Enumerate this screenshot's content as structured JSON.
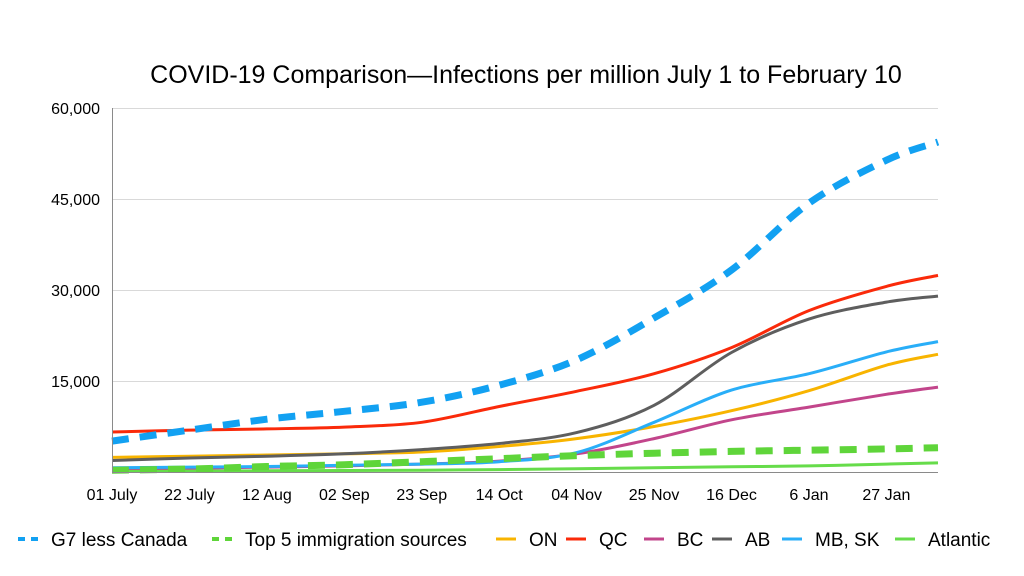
{
  "chart_data": {
    "type": "line",
    "title": "COVID-19 Comparison—Infections per million July 1 to February 10",
    "xlabel": "",
    "ylabel": "",
    "ylim": [
      0,
      60000
    ],
    "yticks": [
      15000,
      30000,
      45000,
      60000
    ],
    "ytick_labels": [
      "15,000",
      "30,000",
      "45,000",
      "60,000"
    ],
    "grid": true,
    "legend_position": "bottom",
    "x_days": [
      0,
      21,
      42,
      63,
      84,
      105,
      126,
      147,
      168,
      189,
      210,
      224
    ],
    "xtick_labels": [
      "01 July",
      "22 July",
      "12 Aug",
      "02 Sep",
      "23 Sep",
      "14 Oct",
      "04 Nov",
      "25 Nov",
      "16 Dec",
      "6 Jan",
      "27 Jan"
    ],
    "xlim_days": [
      0,
      224
    ],
    "series": [
      {
        "name": "G7 less Canada",
        "color": "#12a1f2",
        "style": "dashed",
        "values": [
          5100,
          6900,
          8700,
          10000,
          11500,
          14300,
          18500,
          25400,
          33300,
          44300,
          51400,
          54400
        ]
      },
      {
        "name": "Top 5 immigration sources",
        "color": "#5fd53a",
        "style": "dashed",
        "values": [
          300,
          500,
          900,
          1200,
          1700,
          2200,
          2700,
          3100,
          3400,
          3600,
          3800,
          4000
        ]
      },
      {
        "name": "ON",
        "color": "#f8b400",
        "style": "solid",
        "values": [
          2400,
          2600,
          2800,
          3000,
          3300,
          4200,
          5500,
          7500,
          10100,
          13400,
          17600,
          19400
        ]
      },
      {
        "name": "QC",
        "color": "#fa2a0a",
        "style": "solid",
        "values": [
          6600,
          6900,
          7100,
          7400,
          8200,
          10800,
          13300,
          16200,
          20500,
          26600,
          30600,
          32400
        ]
      },
      {
        "name": "BC",
        "color": "#c2458b",
        "style": "solid",
        "values": [
          500,
          600,
          800,
          1000,
          1300,
          1800,
          3000,
          5500,
          8600,
          10700,
          12800,
          14000
        ]
      },
      {
        "name": "AB",
        "color": "#5e5e5e",
        "style": "solid",
        "values": [
          1900,
          2300,
          2600,
          3000,
          3700,
          4700,
          6500,
          11000,
          19700,
          25200,
          28000,
          29000
        ]
      },
      {
        "name": "MB, SK",
        "color": "#29aef8",
        "style": "solid",
        "values": [
          700,
          800,
          900,
          1100,
          1300,
          1700,
          3200,
          8200,
          13500,
          16200,
          19800,
          21500
        ]
      },
      {
        "name": "Atlantic",
        "color": "#66dc4a",
        "style": "solid",
        "values": [
          100,
          150,
          200,
          250,
          300,
          400,
          550,
          700,
          850,
          1000,
          1300,
          1500
        ]
      }
    ]
  }
}
